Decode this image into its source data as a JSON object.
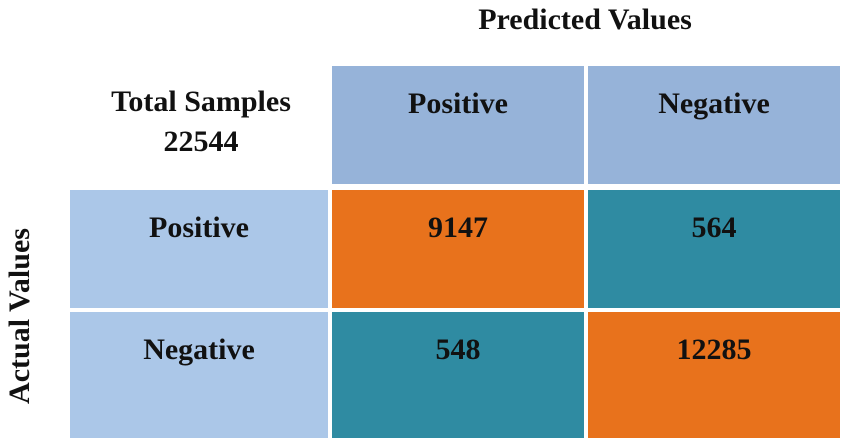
{
  "predicted_title": "Predicted Values",
  "actual_title": "Actual Values",
  "corner": {
    "line1": "Total Samples",
    "line2": "22544"
  },
  "columns": [
    "Positive",
    "Negative"
  ],
  "rows": [
    "Positive",
    "Negative"
  ],
  "matrix": [
    [
      "9147",
      "564"
    ],
    [
      "548",
      "12285"
    ]
  ],
  "colors": {
    "header_fill": "#96b3d9",
    "row_label_fill": "#abc7e8",
    "diagonal_fill": "#e8721c",
    "off_diagonal_fill": "#2f8ba2"
  }
}
